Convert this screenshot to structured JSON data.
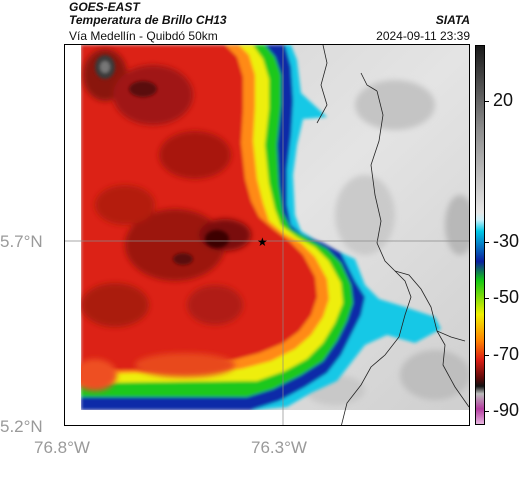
{
  "header": {
    "satellite": "GOES-EAST",
    "product": "Temperatura de Brillo CH13",
    "region": "Vía Medellín - Quibdó 50km",
    "org": "SIATA",
    "datetime": "2024-09-11 23:39"
  },
  "map": {
    "lat_labels": [
      "5.7°N",
      "5.2°N"
    ],
    "lon_labels": [
      "76.8°W",
      "76.3°W"
    ],
    "marker": "star-marker"
  },
  "colorbar": {
    "tick_labels": [
      "20",
      "-30",
      "-50",
      "-70",
      "-90"
    ],
    "tick_values": [
      20,
      -30,
      -50,
      -70,
      -90
    ],
    "range": [
      -95,
      40
    ],
    "colors": {
      "warm_gray_top": "#1a1a1a",
      "light_gray": "#e6e6e6",
      "cyan": "#00c8e6",
      "blue": "#0a1f9e",
      "green": "#14c814",
      "yellow": "#f0f000",
      "orange": "#ff8200",
      "red": "#dc1e14",
      "dark_red": "#5a0a0a",
      "magenta": "#b43ca0"
    }
  }
}
